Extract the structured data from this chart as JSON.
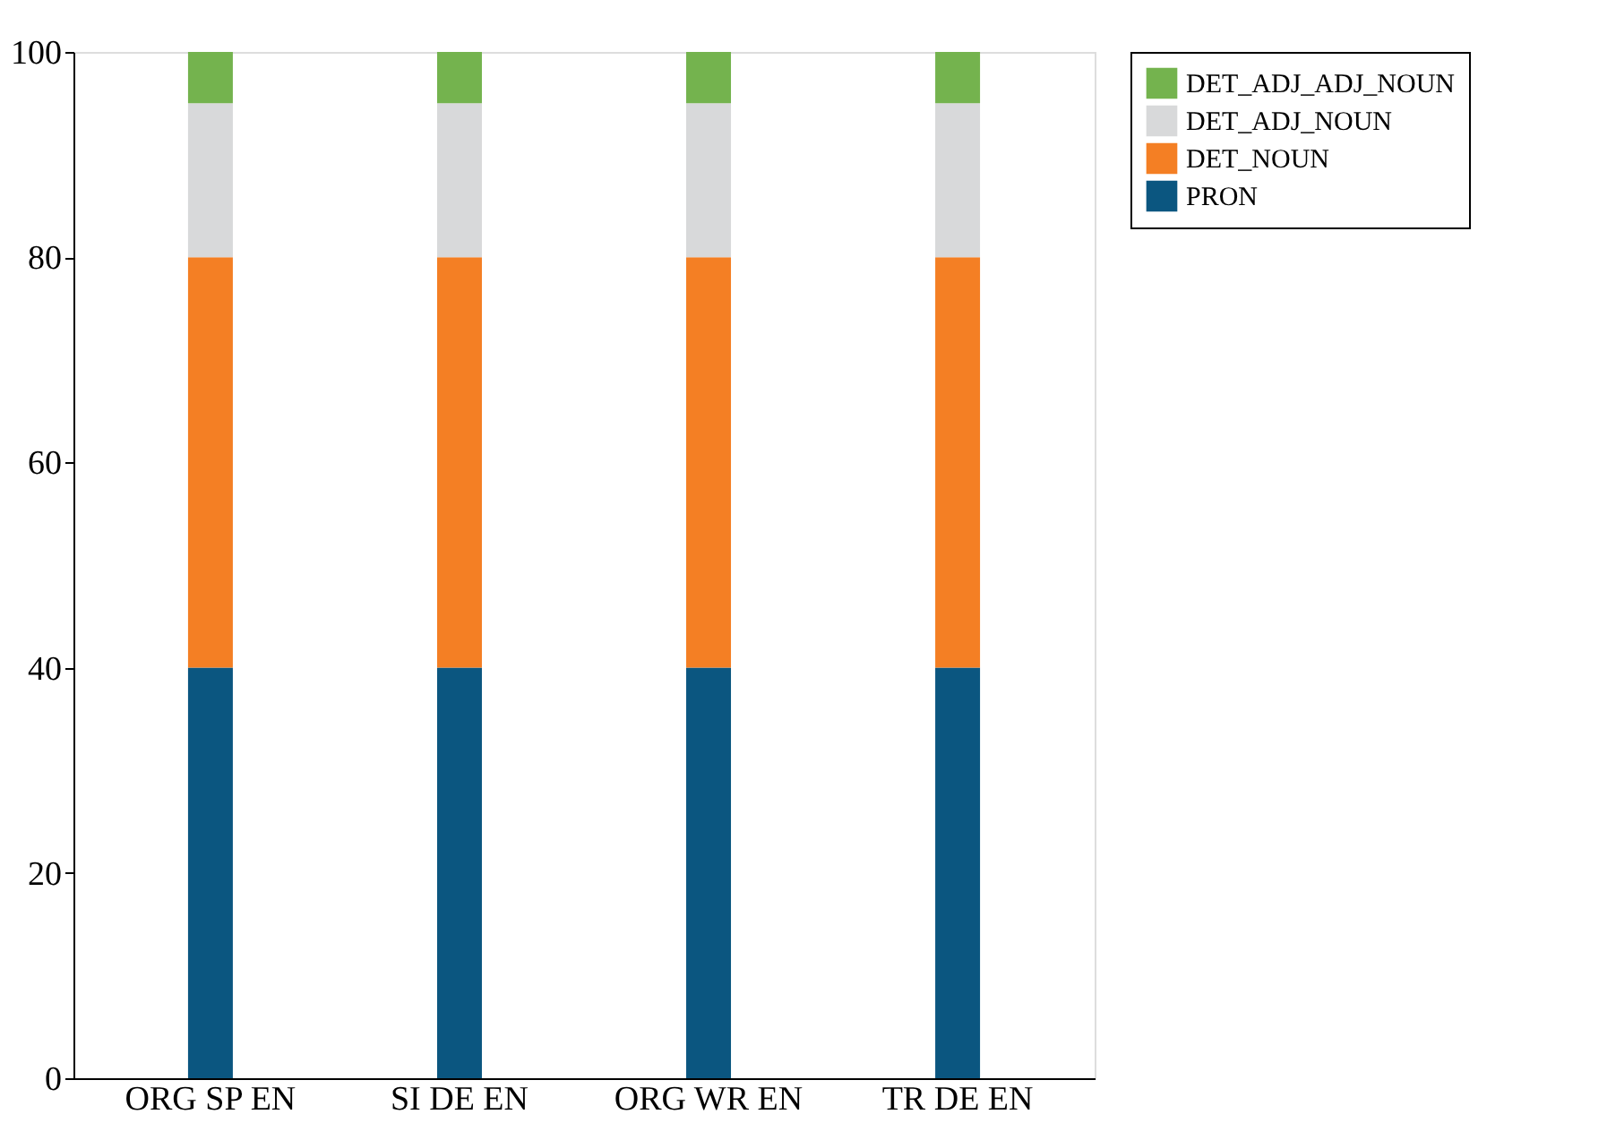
{
  "chart_data": {
    "type": "bar",
    "stacked": true,
    "categories": [
      "ORG SP EN",
      "SI DE EN",
      "ORG WR EN",
      "TR DE EN"
    ],
    "series": [
      {
        "name": "PRON",
        "color": "#0b5680",
        "values": [
          40,
          40,
          40,
          40
        ]
      },
      {
        "name": "DET_NOUN",
        "color": "#f47f24",
        "values": [
          40,
          40,
          40,
          40
        ]
      },
      {
        "name": "DET_ADJ_NOUN",
        "color": "#d8d9da",
        "values": [
          15,
          15,
          15,
          15
        ]
      },
      {
        "name": "DET_ADJ_ADJ_NOUN",
        "color": "#74b34e",
        "values": [
          5,
          5,
          5,
          5
        ]
      }
    ],
    "ylim": [
      0,
      100
    ],
    "yticks": [
      0,
      20,
      40,
      60,
      80,
      100
    ],
    "grid": false,
    "legend": "top right"
  }
}
